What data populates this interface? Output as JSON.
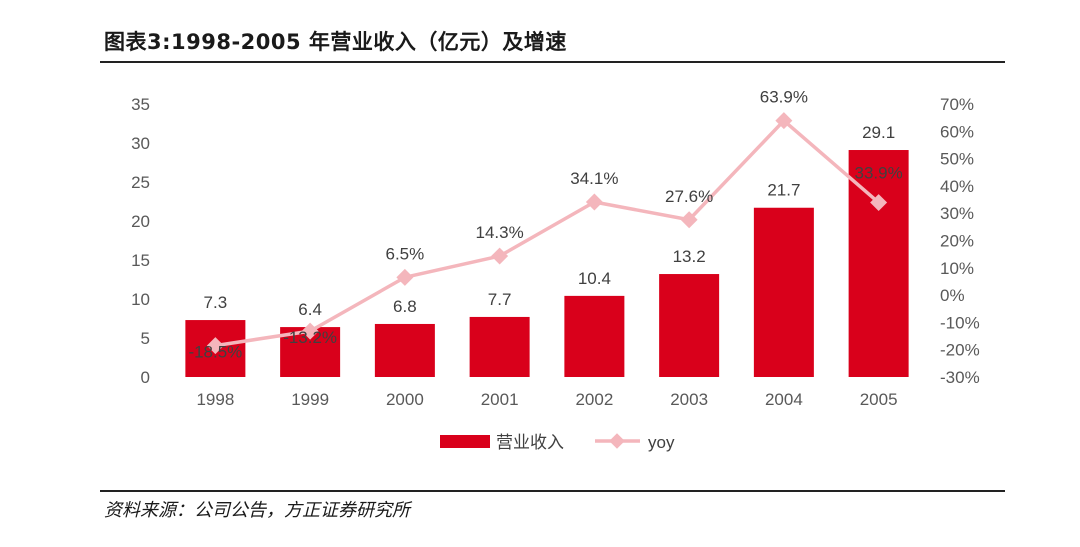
{
  "header": {
    "title": "图表3:1998-2005 年营业收入（亿元）及增速"
  },
  "footer": {
    "source": "资料来源：公司公告，方正证券研究所"
  },
  "colors": {
    "bar": "#d9001b",
    "line": "#f4b6bc",
    "axis_text": "#595959",
    "label_text": "#404040"
  },
  "chart_data": {
    "type": "bar",
    "title": "1998-2005 年营业收入（亿元）及增速",
    "categories": [
      "1998",
      "1999",
      "2000",
      "2001",
      "2002",
      "2003",
      "2004",
      "2005"
    ],
    "series": [
      {
        "name": "营业收入",
        "type": "bar",
        "axis": "left",
        "values": [
          7.3,
          6.4,
          6.8,
          7.7,
          10.4,
          13.2,
          21.7,
          29.1
        ],
        "labels": [
          "7.3",
          "6.4",
          "6.8",
          "7.7",
          "10.4",
          "13.2",
          "21.7",
          "29.1"
        ]
      },
      {
        "name": "yoy",
        "type": "line",
        "axis": "right",
        "values": [
          -18.5,
          -13.2,
          6.5,
          14.3,
          34.1,
          27.6,
          63.9,
          33.9
        ],
        "labels": [
          "-18.5%",
          "-13.2%",
          "6.5%",
          "14.3%",
          "34.1%",
          "27.6%",
          "63.9%",
          "33.9%"
        ]
      }
    ],
    "y_left": {
      "range": [
        0,
        35
      ],
      "ticks": [
        "0",
        "5",
        "10",
        "15",
        "20",
        "25",
        "30",
        "35"
      ]
    },
    "y_right": {
      "range": [
        -30,
        70
      ],
      "ticks": [
        "-30%",
        "-20%",
        "-10%",
        "0%",
        "10%",
        "20%",
        "30%",
        "40%",
        "50%",
        "60%",
        "70%"
      ]
    },
    "legend": {
      "position": "bottom-center",
      "entries": [
        "营业收入",
        "yoy"
      ]
    },
    "grid": false
  }
}
